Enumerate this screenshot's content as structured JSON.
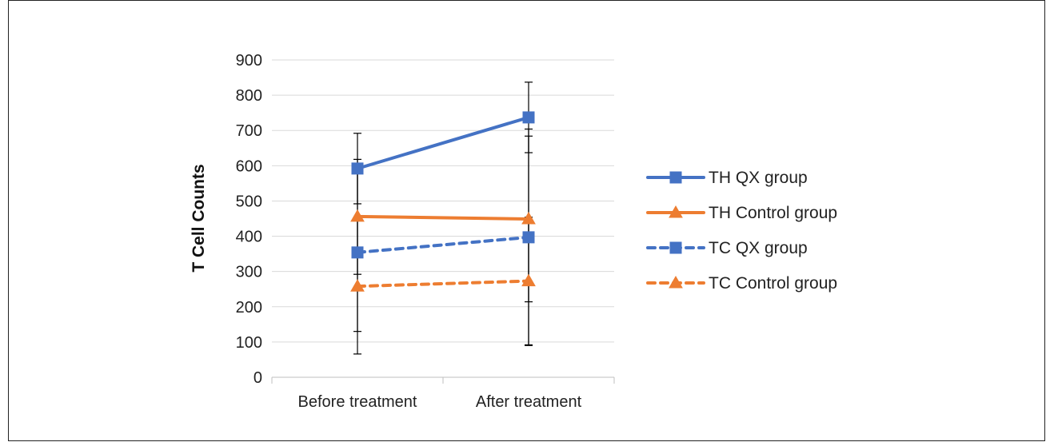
{
  "chart_data": {
    "type": "line",
    "title": "",
    "xlabel": "",
    "ylabel": "T Cell Counts",
    "categories": [
      "Before treatment",
      "After treatment"
    ],
    "ylim": [
      0,
      900
    ],
    "yticks": [
      0,
      100,
      200,
      300,
      400,
      500,
      600,
      700,
      800,
      900
    ],
    "grid": "horizontal",
    "legend_position": "right",
    "series": [
      {
        "name": "TH QX group",
        "values": [
          592,
          737
        ],
        "error_low": [
          492,
          637
        ],
        "error_high": [
          692,
          837
        ],
        "color": "#4472C4",
        "line_style": "solid",
        "marker": "square"
      },
      {
        "name": "TH Control group",
        "values": [
          456,
          449
        ],
        "error_low": [
          292,
          214
        ],
        "error_high": [
          618,
          684
        ],
        "color": "#ED7D31",
        "line_style": "solid",
        "marker": "triangle"
      },
      {
        "name": "TC QX group",
        "values": [
          354,
          397
        ],
        "error_low": [
          130,
          90
        ],
        "error_high": [
          578,
          704
        ],
        "color": "#4472C4",
        "line_style": "dashed",
        "marker": "square"
      },
      {
        "name": "TC Control group",
        "values": [
          258,
          273
        ],
        "error_low": [
          66,
          92
        ],
        "error_high": [
          450,
          454
        ],
        "color": "#ED7D31",
        "line_style": "dashed",
        "marker": "triangle"
      }
    ]
  }
}
